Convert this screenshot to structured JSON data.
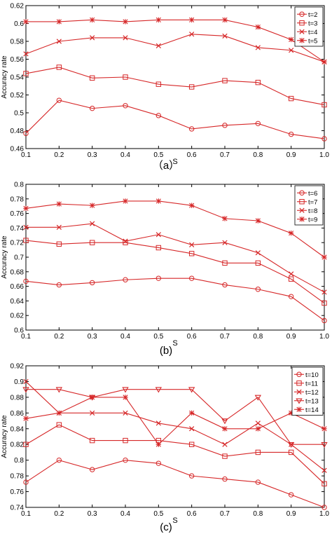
{
  "colors": {
    "series": "#d62728",
    "axis": "#000000",
    "grid": "#c8c8c8"
  },
  "chart_data": [
    {
      "type": "line",
      "panel_label": "（a）",
      "xlabel": "S",
      "ylabel": "Accuracy rate",
      "x": [
        0.1,
        0.2,
        0.3,
        0.4,
        0.5,
        0.6,
        0.7,
        0.8,
        0.9,
        1.0
      ],
      "xlim": [
        0.1,
        1.0
      ],
      "ylim": [
        0.46,
        0.62
      ],
      "xticks": [
        "0.1",
        "0.2",
        "0.3",
        "0.4",
        "0.5",
        "0.6",
        "0.7",
        "0.8",
        "0.9",
        "1.0"
      ],
      "yticks": [
        "0.46",
        "0.48",
        "0.5",
        "0.52",
        "0.54",
        "0.56",
        "0.58",
        "0.6",
        "0.62"
      ],
      "grid": false,
      "legend_position": "top-right",
      "series": [
        {
          "name": "t=2",
          "marker": "circle",
          "values": [
            0.477,
            0.514,
            0.505,
            0.508,
            0.497,
            0.482,
            0.486,
            0.488,
            0.476,
            0.471
          ]
        },
        {
          "name": "t=3",
          "marker": "square",
          "values": [
            0.544,
            0.551,
            0.539,
            0.54,
            0.532,
            0.529,
            0.536,
            0.534,
            0.516,
            0.509
          ]
        },
        {
          "name": "t=4",
          "marker": "x",
          "values": [
            0.566,
            0.58,
            0.584,
            0.584,
            0.575,
            0.588,
            0.586,
            0.573,
            0.57,
            0.557
          ]
        },
        {
          "name": "t=5",
          "marker": "star",
          "values": [
            0.602,
            0.602,
            0.604,
            0.602,
            0.604,
            0.604,
            0.604,
            0.596,
            0.582,
            0.557
          ]
        }
      ]
    },
    {
      "type": "line",
      "panel_label": "(b)",
      "xlabel": "S",
      "ylabel": "Accuracy rate",
      "x": [
        0.1,
        0.2,
        0.3,
        0.4,
        0.5,
        0.6,
        0.7,
        0.8,
        0.9,
        1.0
      ],
      "xlim": [
        0.1,
        1.0
      ],
      "ylim": [
        0.6,
        0.8
      ],
      "xticks": [
        "0.1",
        "0.2",
        "0.3",
        "0.4",
        "0.5",
        "0.6",
        "0.7",
        "0.8",
        "0.9",
        "1.0"
      ],
      "yticks": [
        "0.6",
        "0.62",
        "0.64",
        "0.66",
        "0.68",
        "0.7",
        "0.72",
        "0.74",
        "0.76",
        "0.78",
        "0.8"
      ],
      "grid": false,
      "legend_position": "top-right",
      "series": [
        {
          "name": "t=6",
          "marker": "circle",
          "values": [
            0.667,
            0.662,
            0.665,
            0.669,
            0.671,
            0.671,
            0.662,
            0.656,
            0.646,
            0.613
          ]
        },
        {
          "name": "t=7",
          "marker": "square",
          "values": [
            0.723,
            0.718,
            0.72,
            0.72,
            0.713,
            0.705,
            0.692,
            0.692,
            0.67,
            0.637
          ]
        },
        {
          "name": "t=8",
          "marker": "x",
          "values": [
            0.741,
            0.741,
            0.746,
            0.722,
            0.731,
            0.717,
            0.72,
            0.706,
            0.677,
            0.652
          ]
        },
        {
          "name": "t=9",
          "marker": "star",
          "values": [
            0.767,
            0.773,
            0.771,
            0.777,
            0.777,
            0.771,
            0.753,
            0.75,
            0.733,
            0.7
          ]
        }
      ]
    },
    {
      "type": "line",
      "panel_label": "(c)",
      "xlabel": "S",
      "ylabel": "Accuracy rate",
      "x": [
        0.1,
        0.2,
        0.3,
        0.4,
        0.5,
        0.6,
        0.7,
        0.8,
        0.9,
        1.0
      ],
      "xlim": [
        0.1,
        1.0
      ],
      "ylim": [
        0.74,
        0.92
      ],
      "xticks": [
        "0.1",
        "0.2",
        "0.3",
        "0.4",
        "0.5",
        "0.6",
        "0.7",
        "0.8",
        "0.9",
        "1.0"
      ],
      "yticks": [
        "0.74",
        "0.76",
        "0.78",
        "0.8",
        "0.82",
        "0.84",
        "0.86",
        "0.88",
        "0.9",
        "0.92"
      ],
      "grid": false,
      "legend_position": "top-right",
      "series": [
        {
          "name": "t=10",
          "marker": "circle",
          "values": [
            0.772,
            0.8,
            0.788,
            0.8,
            0.796,
            0.78,
            0.776,
            0.772,
            0.756,
            0.74
          ]
        },
        {
          "name": "t=11",
          "marker": "square",
          "values": [
            0.82,
            0.845,
            0.825,
            0.825,
            0.825,
            0.82,
            0.805,
            0.81,
            0.81,
            0.77
          ]
        },
        {
          "name": "t=12",
          "marker": "x",
          "values": [
            0.9,
            0.86,
            0.86,
            0.86,
            0.847,
            0.84,
            0.82,
            0.847,
            0.82,
            0.787
          ]
        },
        {
          "name": "t=13",
          "marker": "triangle",
          "values": [
            0.89,
            0.89,
            0.88,
            0.89,
            0.89,
            0.89,
            0.85,
            0.88,
            0.82,
            0.82
          ]
        },
        {
          "name": "t=14",
          "marker": "star",
          "values": [
            0.853,
            0.86,
            0.88,
            0.88,
            0.82,
            0.86,
            0.84,
            0.84,
            0.86,
            0.84
          ]
        }
      ]
    }
  ]
}
